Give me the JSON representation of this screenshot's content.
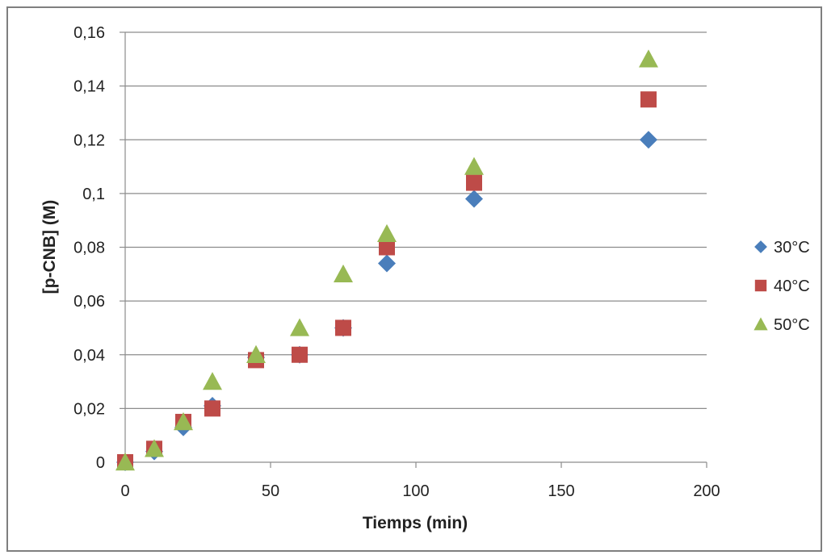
{
  "chart_data": {
    "type": "scatter",
    "title": "",
    "xlabel": "Tiemps (min)",
    "ylabel": "[p-CNB] (M)",
    "xlim": [
      0,
      200
    ],
    "ylim": [
      0,
      0.16
    ],
    "x_ticks": [
      0,
      50,
      100,
      150,
      200
    ],
    "y_ticks": [
      0,
      0.02,
      0.04,
      0.06,
      0.08,
      0.1,
      0.12,
      0.14,
      0.16
    ],
    "x_tick_labels": [
      "0",
      "50",
      "100",
      "150",
      "200"
    ],
    "y_tick_labels": [
      "0",
      "0,02",
      "0,04",
      "0,06",
      "0,08",
      "0,1",
      "0,12",
      "0,14",
      "0,16"
    ],
    "grid": "horizontal",
    "legend_position": "right",
    "series": [
      {
        "name": "30°C",
        "marker": "diamond",
        "color": "#4a7ebb",
        "x": [
          0,
          10,
          20,
          30,
          45,
          60,
          75,
          90,
          120,
          180
        ],
        "y": [
          0,
          0.004,
          0.013,
          0.021,
          0.039,
          0.04,
          0.05,
          0.074,
          0.098,
          0.12
        ]
      },
      {
        "name": "40°C",
        "marker": "square",
        "color": "#be4b48",
        "x": [
          0,
          10,
          20,
          30,
          45,
          60,
          75,
          90,
          120,
          180
        ],
        "y": [
          0,
          0.005,
          0.015,
          0.02,
          0.038,
          0.04,
          0.05,
          0.08,
          0.104,
          0.135
        ]
      },
      {
        "name": "50°C",
        "marker": "triangle",
        "color": "#98b954",
        "x": [
          0,
          10,
          20,
          30,
          45,
          60,
          75,
          90,
          120,
          180
        ],
        "y": [
          0,
          0.005,
          0.015,
          0.03,
          0.04,
          0.05,
          0.07,
          0.085,
          0.11,
          0.15
        ]
      }
    ]
  }
}
